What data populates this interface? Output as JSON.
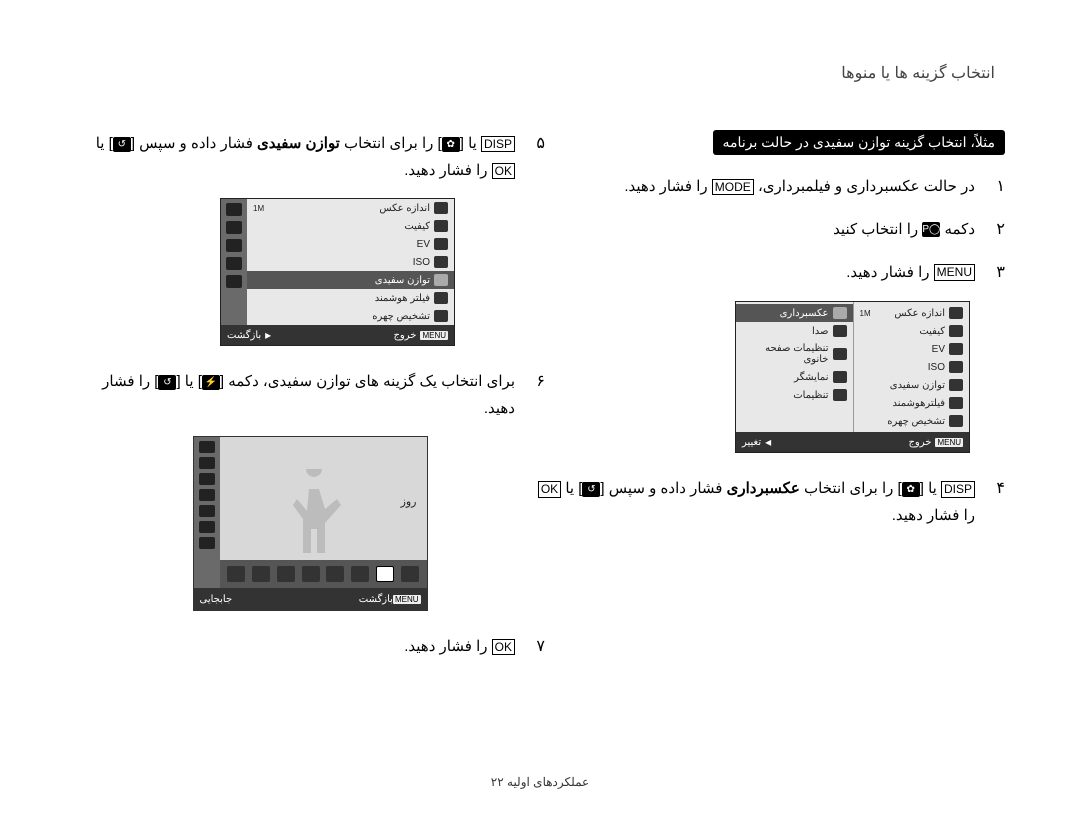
{
  "header": "انتخاب گزینه ها یا منوها",
  "example_badge": "مثلاً، انتخاب گزینه توازن سفیدی در حالت برنامه",
  "right_steps": [
    {
      "n": "۱",
      "html": "در حالت عکسبرداری و فیلمبرداری، <span class='key'>MODE</span> را فشار دهید."
    },
    {
      "n": "۲",
      "html": "دکمه <span class='iconbox'>◯P</span> را انتخاب کنید"
    },
    {
      "n": "۳",
      "html": "<span class='key'>MENU</span> را فشار دهید."
    },
    {
      "n": "۴",
      "html": "<span class='key'>DISP</span> یا [<span class='iconbox'>✿</span>] را برای انتخاب <span class='bold'>عکسبرداری</span> فشار داده و سپس [<span class='iconbox'>↺</span>] یا <span class='key'>OK</span> را فشار دهید."
    }
  ],
  "left_steps": [
    {
      "n": "۵",
      "html": "<span class='key'>DISP</span> یا [<span class='iconbox'>✿</span>] را برای انتخاب <span class='bold'>توازن سفیدی</span> فشار داده و سپس [<span class='iconbox'>↺</span>] یا <span class='key'>OK</span> را فشار دهید."
    },
    {
      "n": "۶",
      "html": "برای انتخاب یک گزینه های توازن سفیدی، دکمه [<span class='iconbox'>⚡</span>] یا [<span class='iconbox'>↺</span>] را فشار دهید."
    },
    {
      "n": "۷",
      "html": "<span class='key'>OK</span> را فشار دهید."
    }
  ],
  "lcd1": {
    "right_rows": [
      {
        "label": "اندازه عکس",
        "mark": "1M"
      },
      {
        "label": "کیفیت",
        "mark": ""
      },
      {
        "label": "EV",
        "mark": ""
      },
      {
        "label": "ISO",
        "mark": ""
      },
      {
        "label": "توازن سفیدی",
        "mark": ""
      },
      {
        "label": "فیلترهوشمند",
        "mark": ""
      },
      {
        "label": "تشخیص چهره",
        "mark": ""
      }
    ],
    "left_rows": [
      {
        "label": "عکسبرداری",
        "hl": true
      },
      {
        "label": "صدا",
        "hl": false
      },
      {
        "label": "تنظیمات صفحه خانوی",
        "hl": false
      },
      {
        "label": "نمایشگر",
        "hl": false
      },
      {
        "label": "تنظیمات",
        "hl": false
      }
    ],
    "footer_left": "خروج",
    "footer_right": "تغییر",
    "footer_menu": "MENU"
  },
  "lcd2": {
    "rows": [
      {
        "label": "اندازه عکس",
        "mark": "1M"
      },
      {
        "label": "کیفیت"
      },
      {
        "label": "EV"
      },
      {
        "label": "ISO"
      },
      {
        "label": "توازن سفیدی",
        "hl": true
      },
      {
        "label": "فیلتر هوشمند"
      },
      {
        "label": "تشخیص چهره"
      }
    ],
    "footer_left": "خروج",
    "footer_right": "بازگشت",
    "footer_menu": "MENU"
  },
  "wb": {
    "label": "روز",
    "footer_left": "بازگشت",
    "footer_right": "جابجایی",
    "footer_menu": "MENU"
  },
  "footer": "عملکردهای اولیه  ۲۲"
}
